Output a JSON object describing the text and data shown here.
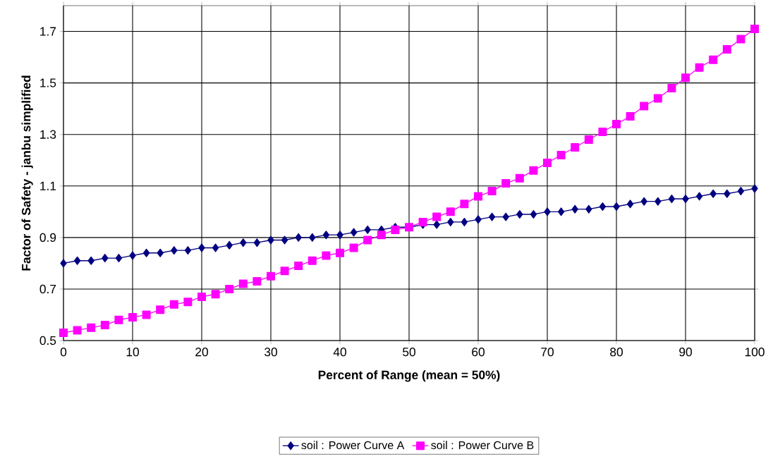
{
  "chart_data": {
    "type": "line",
    "xlabel": "Percent of Range (mean = 50%)",
    "ylabel": "Factor of Safety - janbu simplified",
    "x": [
      0,
      2,
      4,
      6,
      8,
      10,
      12,
      14,
      16,
      18,
      20,
      22,
      24,
      26,
      28,
      30,
      32,
      34,
      36,
      38,
      40,
      42,
      44,
      46,
      48,
      50,
      52,
      54,
      56,
      58,
      60,
      62,
      64,
      66,
      68,
      70,
      72,
      74,
      76,
      78,
      80,
      82,
      84,
      86,
      88,
      90,
      92,
      94,
      96,
      98,
      100
    ],
    "series": [
      {
        "name": "soil : Power Curve A",
        "color": "#000080",
        "marker": "diamond",
        "values": [
          0.8,
          0.81,
          0.81,
          0.82,
          0.82,
          0.83,
          0.84,
          0.84,
          0.85,
          0.85,
          0.86,
          0.86,
          0.87,
          0.88,
          0.88,
          0.89,
          0.89,
          0.9,
          0.9,
          0.91,
          0.91,
          0.92,
          0.93,
          0.93,
          0.94,
          0.94,
          0.95,
          0.95,
          0.96,
          0.96,
          0.97,
          0.98,
          0.98,
          0.99,
          0.99,
          1.0,
          1.0,
          1.01,
          1.01,
          1.02,
          1.02,
          1.03,
          1.04,
          1.04,
          1.05,
          1.05,
          1.06,
          1.07,
          1.07,
          1.08,
          1.09
        ]
      },
      {
        "name": "soil : Power Curve B",
        "color": "#ff00ff",
        "marker": "square",
        "values": [
          0.53,
          0.54,
          0.55,
          0.56,
          0.58,
          0.59,
          0.6,
          0.62,
          0.64,
          0.65,
          0.67,
          0.68,
          0.7,
          0.72,
          0.73,
          0.75,
          0.77,
          0.79,
          0.81,
          0.83,
          0.84,
          0.86,
          0.89,
          0.91,
          0.93,
          0.94,
          0.96,
          0.98,
          1.0,
          1.03,
          1.06,
          1.08,
          1.11,
          1.13,
          1.16,
          1.19,
          1.22,
          1.25,
          1.28,
          1.31,
          1.34,
          1.37,
          1.41,
          1.44,
          1.48,
          1.52,
          1.56,
          1.59,
          1.63,
          1.67,
          1.71
        ]
      }
    ],
    "xlim": [
      0,
      100
    ],
    "xticks": [
      0,
      10,
      20,
      30,
      40,
      50,
      60,
      70,
      80,
      90,
      100
    ],
    "ylim": [
      0.5,
      1.8
    ],
    "yticks": [
      0.5,
      0.7,
      0.9,
      1.1,
      1.3,
      1.5,
      1.7
    ],
    "grid": true,
    "legend": "bottom",
    "line_style": "solid"
  }
}
